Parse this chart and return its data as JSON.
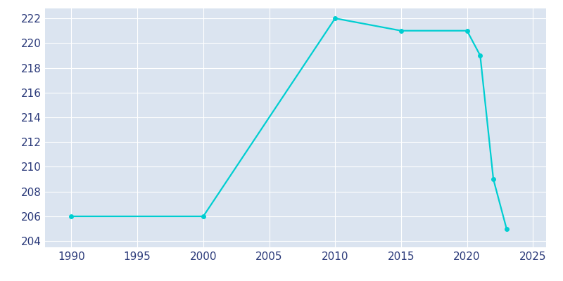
{
  "years": [
    1990,
    2000,
    2010,
    2015,
    2020,
    2021,
    2022,
    2023
  ],
  "population": [
    206,
    206,
    222,
    221,
    221,
    219,
    209,
    205
  ],
  "line_color": "#00CED1",
  "plot_bg_color": "#dbe4f0",
  "figure_bg_color": "#ffffff",
  "grid_color": "#ffffff",
  "text_color": "#2b3a7a",
  "xlim": [
    1988,
    2026
  ],
  "ylim": [
    203.5,
    222.8
  ],
  "yticks": [
    204,
    206,
    208,
    210,
    212,
    214,
    216,
    218,
    220,
    222
  ],
  "xticks": [
    1990,
    1995,
    2000,
    2005,
    2010,
    2015,
    2020,
    2025
  ],
  "line_width": 1.6,
  "marker_size": 4
}
